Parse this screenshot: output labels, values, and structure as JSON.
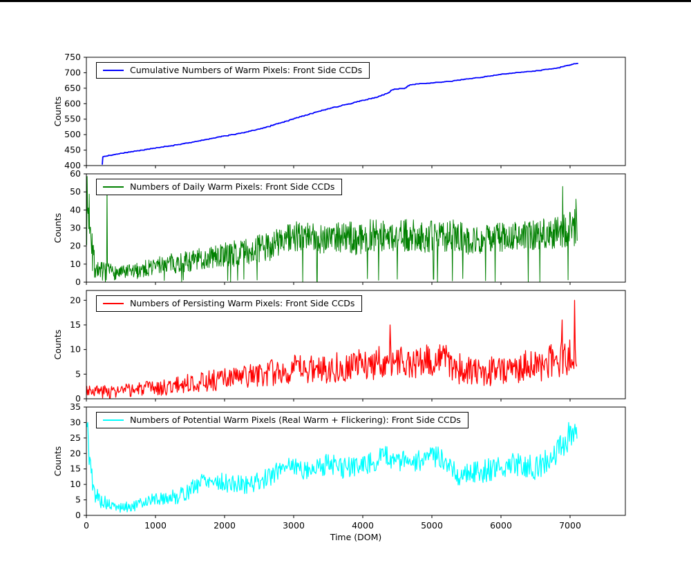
{
  "figure": {
    "xlabel": "Time (DOM)",
    "ylabel": "Counts",
    "background": "#ffffff",
    "xlim": [
      0,
      7800
    ],
    "xticks": [
      0,
      1000,
      2000,
      3000,
      4000,
      5000,
      6000,
      7000
    ],
    "grid": false,
    "legend_position": "upper-left"
  },
  "chart_data": [
    {
      "type": "line",
      "label": "Cumulative Numbers of Warm Pixels: Front Side CCDs",
      "color": "#0000ff",
      "lw": 1.8,
      "ylim": [
        400,
        750
      ],
      "yticks": [
        400,
        450,
        500,
        550,
        600,
        650,
        700,
        750
      ],
      "x_start": 230,
      "x_end": 7120,
      "sample_step": 8,
      "seed": 11,
      "monotone": true,
      "trend": [
        [
          230,
          403
        ],
        [
          236,
          428
        ],
        [
          400,
          435
        ],
        [
          700,
          446
        ],
        [
          1000,
          456
        ],
        [
          1300,
          466
        ],
        [
          1600,
          478
        ],
        [
          1900,
          491
        ],
        [
          2200,
          503
        ],
        [
          2500,
          517
        ],
        [
          2800,
          537
        ],
        [
          3100,
          558
        ],
        [
          3400,
          577
        ],
        [
          3700,
          594
        ],
        [
          4000,
          610
        ],
        [
          4200,
          620
        ],
        [
          4380,
          636
        ],
        [
          4420,
          645
        ],
        [
          4600,
          649
        ],
        [
          4680,
          660
        ],
        [
          4800,
          663
        ],
        [
          5100,
          668
        ],
        [
          5400,
          676
        ],
        [
          5700,
          684
        ],
        [
          6000,
          694
        ],
        [
          6300,
          701
        ],
        [
          6600,
          708
        ],
        [
          6800,
          714
        ],
        [
          6950,
          722
        ],
        [
          7050,
          727
        ],
        [
          7120,
          730
        ]
      ],
      "noise": [
        [
          0,
          1.5
        ],
        [
          7200,
          1.5
        ]
      ],
      "spikes": []
    },
    {
      "type": "line",
      "label": "Numbers of Daily Warm Pixels: Front Side CCDs",
      "color": "#008000",
      "lw": 1.0,
      "ylim": [
        0,
        60
      ],
      "yticks": [
        0,
        10,
        20,
        30,
        40,
        50,
        60
      ],
      "x_start": 5,
      "x_end": 7110,
      "sample_step": 6,
      "seed": 7,
      "monotone": false,
      "dip_prob": 0.02,
      "trend": [
        [
          5,
          40
        ],
        [
          60,
          38
        ],
        [
          110,
          10
        ],
        [
          160,
          7
        ],
        [
          300,
          6
        ],
        [
          500,
          5
        ],
        [
          700,
          6
        ],
        [
          900,
          8
        ],
        [
          1100,
          10
        ],
        [
          1400,
          11
        ],
        [
          1700,
          13
        ],
        [
          2000,
          15
        ],
        [
          2300,
          17
        ],
        [
          2600,
          19
        ],
        [
          2800,
          23
        ],
        [
          3000,
          25
        ],
        [
          3300,
          24
        ],
        [
          3600,
          26
        ],
        [
          3900,
          24
        ],
        [
          4100,
          26
        ],
        [
          4400,
          25
        ],
        [
          4700,
          26
        ],
        [
          5000,
          25
        ],
        [
          5300,
          26
        ],
        [
          5500,
          24
        ],
        [
          5700,
          23
        ],
        [
          5900,
          25
        ],
        [
          6100,
          25
        ],
        [
          6400,
          26
        ],
        [
          6700,
          27
        ],
        [
          6900,
          29
        ],
        [
          7050,
          30
        ],
        [
          7110,
          33
        ]
      ],
      "noise": [
        [
          0,
          20
        ],
        [
          90,
          18
        ],
        [
          140,
          5
        ],
        [
          500,
          4
        ],
        [
          1000,
          5
        ],
        [
          1500,
          6
        ],
        [
          2000,
          7
        ],
        [
          2500,
          8
        ],
        [
          3000,
          9
        ],
        [
          4000,
          9
        ],
        [
          5000,
          9
        ],
        [
          6000,
          8
        ],
        [
          6800,
          9
        ],
        [
          7110,
          11
        ]
      ],
      "spikes": [
        [
          300,
          55
        ],
        [
          6890,
          53
        ],
        [
          7085,
          46
        ]
      ]
    },
    {
      "type": "line",
      "label": "Numbers of Persisting Warm Pixels: Front Side CCDs",
      "color": "#ff0000",
      "lw": 1.3,
      "ylim": [
        0,
        22
      ],
      "yticks": [
        0,
        5,
        10,
        15,
        20
      ],
      "x_start": 5,
      "x_end": 7100,
      "sample_step": 10,
      "seed": 3,
      "monotone": false,
      "trend": [
        [
          5,
          2
        ],
        [
          200,
          1.5
        ],
        [
          500,
          1.5
        ],
        [
          800,
          2
        ],
        [
          1100,
          2.2
        ],
        [
          1400,
          3
        ],
        [
          1700,
          3.5
        ],
        [
          2000,
          4
        ],
        [
          2300,
          4.5
        ],
        [
          2600,
          5
        ],
        [
          2900,
          5.8
        ],
        [
          3200,
          6
        ],
        [
          3500,
          6.3
        ],
        [
          3800,
          6.8
        ],
        [
          4100,
          7
        ],
        [
          4400,
          7.8
        ],
        [
          4700,
          7
        ],
        [
          5000,
          7.8
        ],
        [
          5200,
          8
        ],
        [
          5400,
          6
        ],
        [
          5600,
          5
        ],
        [
          5800,
          5.5
        ],
        [
          6000,
          6
        ],
        [
          6300,
          6.5
        ],
        [
          6600,
          7
        ],
        [
          6800,
          7.8
        ],
        [
          7000,
          8.5
        ],
        [
          7100,
          8
        ]
      ],
      "noise": [
        [
          0,
          1.3
        ],
        [
          1000,
          1.5
        ],
        [
          2000,
          2.3
        ],
        [
          3000,
          3
        ],
        [
          4000,
          3.3
        ],
        [
          5000,
          3.4
        ],
        [
          6000,
          3
        ],
        [
          7100,
          3.8
        ]
      ],
      "spikes": [
        [
          4390,
          15
        ],
        [
          6880,
          16
        ],
        [
          7060,
          20
        ]
      ]
    },
    {
      "type": "line",
      "label": "Numbers of Potential Warm Pixels (Real Warm + Flickering): Front Side CCDs",
      "color": "#00ffff",
      "lw": 1.3,
      "ylim": [
        0,
        35
      ],
      "yticks": [
        0,
        5,
        10,
        15,
        20,
        25,
        30,
        35
      ],
      "x_start": 0,
      "x_end": 7100,
      "sample_step": 10,
      "seed": 5,
      "monotone": false,
      "trend": [
        [
          0,
          28
        ],
        [
          40,
          20
        ],
        [
          100,
          8
        ],
        [
          200,
          5
        ],
        [
          350,
          3
        ],
        [
          500,
          2.5
        ],
        [
          700,
          3
        ],
        [
          900,
          5
        ],
        [
          1100,
          5.5
        ],
        [
          1300,
          6
        ],
        [
          1500,
          8
        ],
        [
          1700,
          12
        ],
        [
          1900,
          11
        ],
        [
          2100,
          10
        ],
        [
          2300,
          10
        ],
        [
          2500,
          11
        ],
        [
          2700,
          13
        ],
        [
          2900,
          17
        ],
        [
          3100,
          15
        ],
        [
          3300,
          15
        ],
        [
          3500,
          17
        ],
        [
          3700,
          15
        ],
        [
          3900,
          16
        ],
        [
          4100,
          17
        ],
        [
          4300,
          19
        ],
        [
          4500,
          18
        ],
        [
          4700,
          17
        ],
        [
          4900,
          18
        ],
        [
          5100,
          19
        ],
        [
          5300,
          16
        ],
        [
          5400,
          12
        ],
        [
          5500,
          14
        ],
        [
          5700,
          14
        ],
        [
          5900,
          15
        ],
        [
          6100,
          16
        ],
        [
          6300,
          17
        ],
        [
          6500,
          15
        ],
        [
          6700,
          18
        ],
        [
          6900,
          23
        ],
        [
          7000,
          25
        ],
        [
          7100,
          27
        ]
      ],
      "noise": [
        [
          0,
          5
        ],
        [
          120,
          3
        ],
        [
          400,
          1.5
        ],
        [
          1000,
          2
        ],
        [
          1600,
          3
        ],
        [
          2500,
          3
        ],
        [
          3500,
          3.5
        ],
        [
          5000,
          3.5
        ],
        [
          6500,
          4
        ],
        [
          7100,
          4
        ]
      ],
      "spikes": [
        [
          15,
          30
        ],
        [
          6975,
          30
        ]
      ]
    }
  ]
}
